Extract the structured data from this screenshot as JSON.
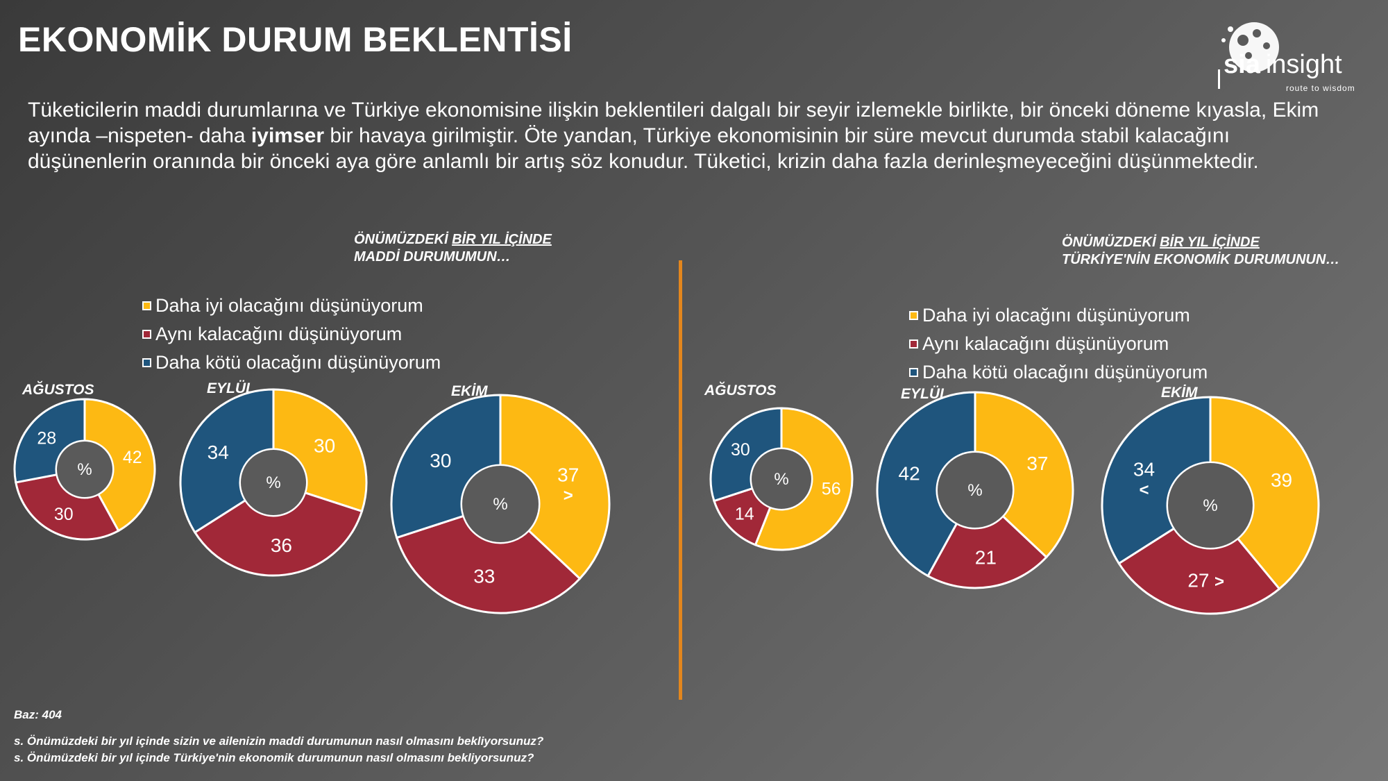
{
  "title": "EKONOMİK DURUM BEKLENTİSİ",
  "intro": {
    "part1": "Tüketicilerin maddi durumlarına ve Türkiye ekonomisine ilişkin beklentileri dalgalı bir seyir izlemekle birlikte, bir önceki döneme kıyasla, Ekim ayında –nispeten- daha ",
    "bold": "iyimser",
    "part2": " bir havaya girilmiştir. Öte yandan, Türkiye ekonomisinin bir süre mevcut durumda stabil kalacağını düşünenlerin oranında bir önceki aya göre anlamlı bir artış söz konudur. Tüketici, krizin daha fazla derinleşmeyeceğini düşünmektedir."
  },
  "logo": {
    "brand": "sia",
    "word": "insight",
    "tagline": "route to wisdom"
  },
  "colors": {
    "better": "#FDB913",
    "same": "#A12838",
    "worse": "#1F557D",
    "center": "#5a5a5a",
    "divider": "#e3861d"
  },
  "left": {
    "title_plain": "ÖNÜMÜZDEKİ ",
    "title_underlined": "BİR YIL İÇİNDE",
    "title_line2": "MADDİ DURUMUMUN…",
    "legend": [
      "Daha iyi olacağını düşünüyorum",
      "Aynı kalacağını düşünüyorum",
      "Daha kötü olacağını düşünüyorum"
    ]
  },
  "right": {
    "title_plain": "ÖNÜMÜZDEKİ ",
    "title_underlined": "BİR YIL İÇİNDE",
    "title_line2": "TÜRKİYE'NİN EKONOMİK DURUMUNUN…",
    "legend": [
      "Daha iyi olacağını düşünüyorum",
      "Aynı kalacağını düşünüyorum",
      "Daha kötü olacağını düşünüyorum"
    ]
  },
  "chart_data": [
    {
      "type": "pie",
      "group": "maddi_durum",
      "label": "AĞUSTOS",
      "center_label": "%",
      "categories": [
        "Daha iyi",
        "Aynı",
        "Daha kötü"
      ],
      "values": [
        42,
        30,
        28
      ],
      "marks": [
        "",
        "",
        ""
      ]
    },
    {
      "type": "pie",
      "group": "maddi_durum",
      "label": "EYLÜL",
      "center_label": "%",
      "categories": [
        "Daha iyi",
        "Aynı",
        "Daha kötü"
      ],
      "values": [
        30,
        36,
        34
      ],
      "marks": [
        "",
        "",
        ""
      ]
    },
    {
      "type": "pie",
      "group": "maddi_durum",
      "label": "EKİM",
      "center_label": "%",
      "categories": [
        "Daha iyi",
        "Aynı",
        "Daha kötü"
      ],
      "values": [
        37,
        33,
        30
      ],
      "marks": [
        ">",
        "",
        ""
      ]
    },
    {
      "type": "pie",
      "group": "turkiye_ekonomisi",
      "label": "AĞUSTOS",
      "center_label": "%",
      "categories": [
        "Daha iyi",
        "Aynı",
        "Daha kötü"
      ],
      "values": [
        56,
        14,
        30
      ],
      "marks": [
        "",
        "",
        ""
      ]
    },
    {
      "type": "pie",
      "group": "turkiye_ekonomisi",
      "label": "EYLÜL",
      "center_label": "%",
      "categories": [
        "Daha iyi",
        "Aynı",
        "Daha kötü"
      ],
      "values": [
        37,
        21,
        42
      ],
      "marks": [
        "",
        "",
        ""
      ]
    },
    {
      "type": "pie",
      "group": "turkiye_ekonomisi",
      "label": "EKİM",
      "center_label": "%",
      "categories": [
        "Daha iyi",
        "Aynı",
        "Daha kötü"
      ],
      "values": [
        39,
        27,
        34
      ],
      "marks": [
        "",
        ">",
        "<"
      ]
    }
  ],
  "footer": {
    "base": "Baz: 404",
    "q1": "s. Önümüzdeki bir yıl içinde sizin ve ailenizin maddi durumunun nasıl olmasını bekliyorsunuz?",
    "q2": "s. Önümüzdeki bir yıl içinde Türkiye'nin ekonomik durumunun nasıl olmasını bekliyorsunuz?"
  }
}
